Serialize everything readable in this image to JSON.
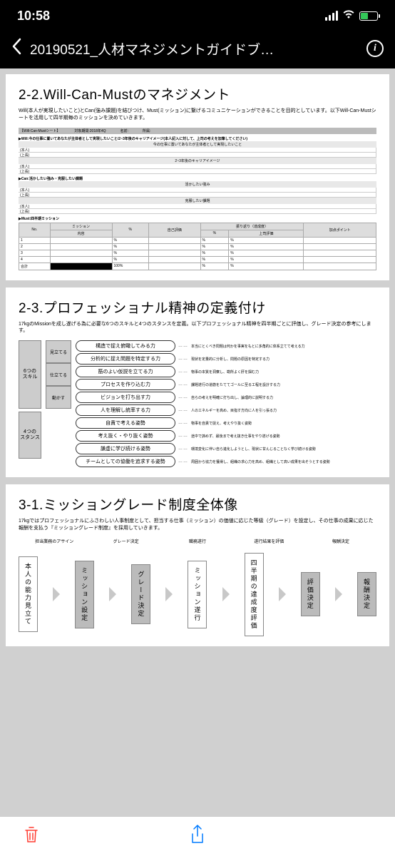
{
  "status": {
    "time": "10:58"
  },
  "nav": {
    "title": "20190521_人材マネジメントガイドブ…"
  },
  "page1": {
    "title": "2-2.Will-Can-Mustのマネジメント",
    "sub": "Will(本人が実現したいこと)とCan(強み課題)を結びつけ、Must(ミッション)に繋げるコミュニケーションができることを目的としています。以下Will-Can-Mustシートを活用して四半期毎のミッションを決めていきます。",
    "sheetLabel": "【Will-Can-Mustシート】",
    "period": "対象期間:2018年4Q",
    "nameL": "名前:",
    "deptL": "所属:",
    "willHeader": "▶Will:今の仕事に置いてあなたが主体者として実現したいこと/2~3年後のキャリアイメージ(本人記入に対して、上司の考えを加筆してください)",
    "willSub": "今の仕事に置いてあなたが主体者として実現したいこと",
    "self": "(本人)",
    "boss": "(上長)",
    "careerHeader": "2~3年後のキャリアイメージ",
    "canHeader": "▶Can:活かしたい強み・克服したい課題",
    "strength": "活かしたい強み",
    "weakness": "克服したい課題",
    "mustHeader": "▶Must:四半期ミッション",
    "cols": {
      "no": "No.",
      "mission": "ミッション",
      "content": "内容",
      "pct": "%",
      "selfEval": "自己評価",
      "return": "振り返り（達成度）",
      "bossEval": "上司評価",
      "point": "加点ポイント"
    },
    "total": "合計",
    "hundred": "100%"
  },
  "page2": {
    "title": "2-3.プロフェッショナル精神の定義付け",
    "sub": "17kgのMissionを成し遂げる為に必要な6つのスキルと4つのスタンスを定義。以下プロフェッショナル精神を四半期ごとに評価し、グレード決定の参考にします。",
    "sixLabel": "6つの\nスキル",
    "fourLabel": "4つの\nスタンス",
    "mids": [
      "見立てる",
      "仕立てる",
      "動かす"
    ],
    "skills": [
      {
        "p": "構造で捉え俯瞰してみる力",
        "d": "本当にとくべき問題は何かを事実をもとに多角的に体系立てて考える力"
      },
      {
        "p": "分析的に捉え問題を特定する力",
        "d": "現状を定量的に分析し、問題の原因を特定する力"
      },
      {
        "p": "筋のよい仮説を立てる力",
        "d": "物事の本質を洞察し、勘所よく肝を掴む力"
      },
      {
        "p": "プロセスを作り込む力",
        "d": "課題遂行の道筋をたててゴールに至る工程を設計する力"
      },
      {
        "p": "ビジョンを打ち出す力",
        "d": "自らの考えを明確に打ち出し、論理的に説明する力"
      },
      {
        "p": "人を理解し統率する力",
        "d": "人のエネルギーを高め、目指す方向に人を引っ張る力"
      }
    ],
    "stances": [
      {
        "p": "自責で考える姿勢",
        "d": "物事を自責で捉え、考えやり抜く姿勢"
      },
      {
        "p": "考え抜く・やり抜く姿勢",
        "d": "途中で諦めず、最後まで考え抜き仕事をやり遂げる姿勢"
      },
      {
        "p": "謙虚に学び続ける姿勢",
        "d": "環境変化に伴い自ら進化しようとし、現状に甘んじることなく学び続ける姿勢"
      },
      {
        "p": "チームとしての協働を追求する姿勢",
        "d": "周囲から協力を獲得し、組織の求心力を高め、組織として高い成果を出そうとする姿勢"
      }
    ]
  },
  "page3": {
    "title": "3-1.ミッショングレード制度全体像",
    "sub": "17kgではプロフェッショナルにふさわしい人事制度として、担当する仕事（ミッション）の価値に応じた等級（グレード）を設定し、その仕事の成果に応じた報酬を支払う『ミッショングレード制度』を採用していきます。",
    "labels": [
      "担当業務のアサイン",
      "グレード決定",
      "職務遂行",
      "遂行結果を評価",
      "報酬決定"
    ],
    "boxes": [
      {
        "t": "本人の能力見立て",
        "c": "white"
      },
      {
        "t": "ミッション設定",
        "c": "gray"
      },
      {
        "t": "グレード決定",
        "c": "gray"
      },
      {
        "t": "ミッション遂行",
        "c": "white"
      },
      {
        "t": "四半期の達成度評価",
        "c": "white"
      },
      {
        "t": "評価決定",
        "c": "gray"
      },
      {
        "t": "報酬決定",
        "c": "gray"
      }
    ]
  }
}
